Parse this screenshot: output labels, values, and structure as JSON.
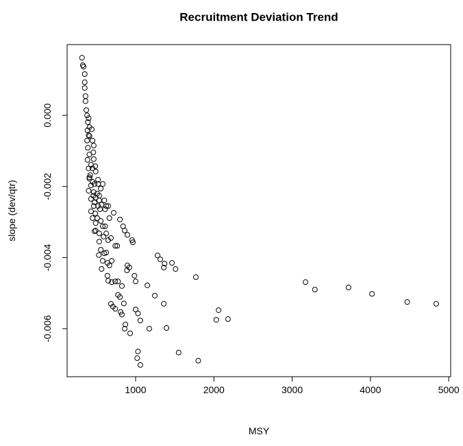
{
  "chart_data": {
    "type": "scatter",
    "title": "Recruitment Deviation Trend",
    "x_label": "MSY",
    "y_label": "slope (dev/qtr)",
    "x": [
      3170,
      3290,
      3720,
      4020,
      4470,
      4840,
      1770,
      1800,
      1550,
      2030,
      2060,
      2180,
      1280,
      1315,
      1370,
      1360,
      1465,
      1510,
      1360,
      1395,
      1245,
      1150,
      1175,
      1030,
      1020,
      1060,
      1000,
      1030,
      1060,
      930,
      870,
      860,
      825,
      808,
      850,
      800,
      775,
      825,
      710,
      685,
      740,
      695,
      740,
      650,
      640,
      775,
      890,
      920,
      895,
      985,
      1000,
      965,
      955,
      840,
      860,
      895,
      800,
      720,
      610,
      650,
      765,
      740,
      685,
      650,
      695,
      640,
      665,
      600,
      625,
      580,
      565,
      530,
      555,
      535,
      490,
      580,
      555,
      510,
      485,
      545,
      520,
      475,
      490,
      535,
      510,
      460,
      430,
      465,
      430,
      450,
      475,
      535,
      580,
      555,
      520,
      490,
      485,
      465,
      460,
      465,
      450,
      410,
      430,
      410,
      430,
      400,
      420,
      400,
      385,
      390,
      400,
      410,
      385,
      390,
      400,
      380,
      370,
      360,
      360,
      350,
      350,
      350,
      335,
      325,
      315,
      410,
      440,
      410,
      380,
      450,
      535,
      600,
      625,
      565,
      665,
      610,
      625,
      590,
      490,
      475,
      450,
      465,
      520
    ],
    "values": [
      -0.00469,
      -0.0049,
      -0.00484,
      -0.00502,
      -0.00525,
      -0.0053,
      -0.00455,
      -0.0069,
      -0.00667,
      -0.00575,
      -0.00548,
      -0.00573,
      -0.00394,
      -0.00405,
      -0.00417,
      -0.00428,
      -0.00415,
      -0.00432,
      -0.0053,
      -0.00598,
      -0.00507,
      -0.00478,
      -0.006,
      -0.00664,
      -0.00683,
      -0.00702,
      -0.00546,
      -0.00557,
      -0.00577,
      -0.00613,
      -0.00588,
      -0.006,
      -0.0056,
      -0.00553,
      -0.00529,
      -0.00511,
      -0.00505,
      -0.0048,
      -0.00538,
      -0.0053,
      -0.00544,
      -0.00469,
      -0.00467,
      -0.00465,
      -0.00451,
      -0.00467,
      -0.00436,
      -0.00428,
      -0.00422,
      -0.00451,
      -0.00467,
      -0.00357,
      -0.00351,
      -0.00312,
      -0.00324,
      -0.00336,
      -0.00293,
      -0.00274,
      -0.00264,
      -0.00255,
      -0.00367,
      -0.00367,
      -0.00345,
      -0.00351,
      -0.00409,
      -0.00415,
      -0.00422,
      -0.00388,
      -0.00386,
      -0.00409,
      -0.00432,
      -0.00393,
      -0.00378,
      -0.00332,
      -0.00324,
      -0.00312,
      -0.00297,
      -0.00289,
      -0.00276,
      -0.00264,
      -0.00255,
      -0.00245,
      -0.00231,
      -0.00226,
      -0.0022,
      -0.00226,
      -0.00235,
      -0.00255,
      -0.0027,
      -0.00289,
      -0.00326,
      -0.00355,
      -0.00193,
      -0.00206,
      -0.00181,
      -0.00158,
      -0.00143,
      -0.00123,
      -0.00104,
      -0.00085,
      -0.00071,
      -0.0011,
      -0.00139,
      -0.00174,
      -0.00197,
      -0.00212,
      -0.00168,
      -0.00149,
      -0.00125,
      -0.00091,
      -0.00056,
      -0.00033,
      -0.00042,
      -0.00019,
      -8e-05,
      0,
      0.00015,
      0.0004,
      0.00054,
      0.00077,
      0.00093,
      0.00116,
      0.00137,
      0.00141,
      0.00162,
      -0.00058,
      -0.00039,
      -0.00178,
      -0.00071,
      -0.00187,
      -0.00239,
      -0.00239,
      -0.00255,
      -0.00251,
      -0.00289,
      -0.00312,
      -0.00332,
      -0.00341,
      -0.00303,
      -0.00193,
      -0.00149,
      -0.00216,
      -0.00193
    ],
    "color": "#000000",
    "xlim": [
      125,
      5025
    ],
    "ylim": [
      -0.00735,
      0.00199
    ],
    "xticks": [
      1000,
      2000,
      3000,
      4000,
      5000
    ],
    "yticks": [
      -0.006,
      -0.004,
      -0.002,
      {
        "value": 0,
        "label": "0.000"
      }
    ]
  }
}
